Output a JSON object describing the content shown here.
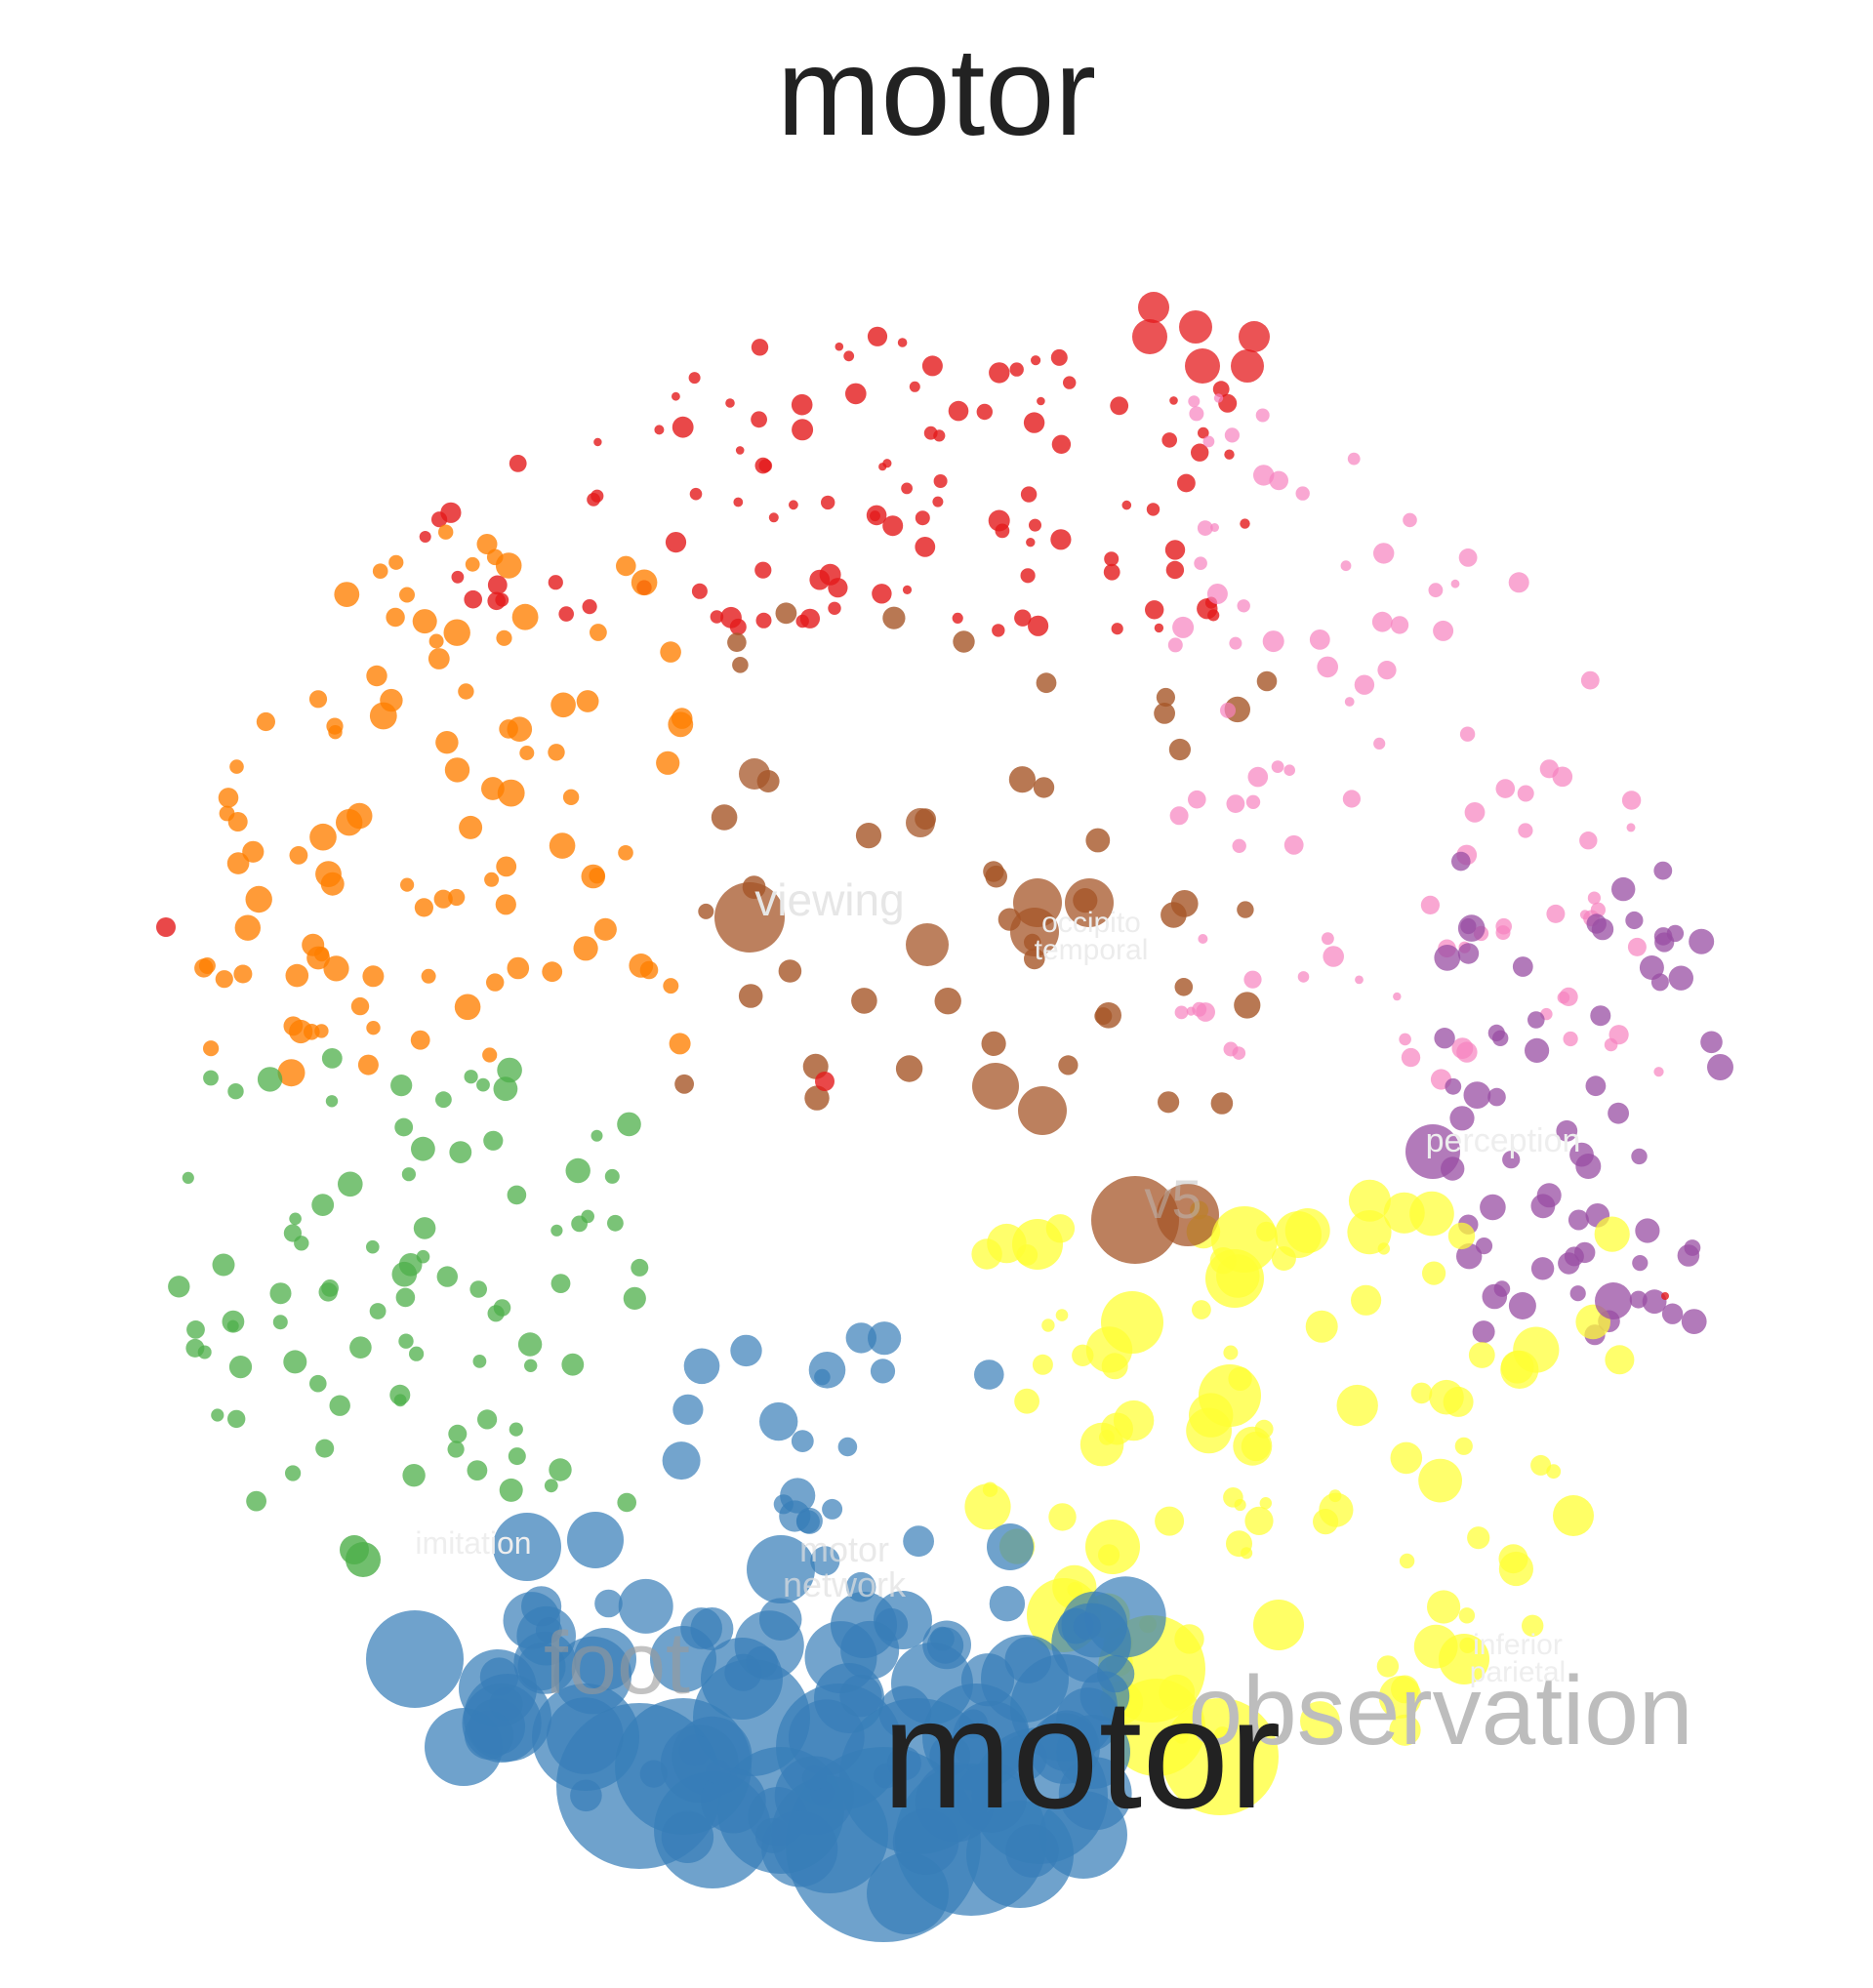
{
  "title": "motor",
  "colors": {
    "background": "#ffffff",
    "title": "#222222",
    "clusters": {
      "red": "#e41a1c",
      "orange": "#ff7f00",
      "green": "#4daf4a",
      "blue": "#377eb8",
      "yellow": "#ffff33",
      "brown": "#a65628",
      "pink": "#f781bf",
      "purple": "#984ea3"
    }
  },
  "terms": [
    {
      "text": "motor",
      "emphasis": "primary"
    },
    {
      "text": "observation",
      "emphasis": "secondary"
    },
    {
      "text": "foot",
      "emphasis": "secondary"
    },
    {
      "text": "v5",
      "emphasis": "faint"
    },
    {
      "text": "viewing",
      "emphasis": "faint"
    },
    {
      "text": "motor network",
      "emphasis": "faint"
    },
    {
      "text": "occipito temporal",
      "emphasis": "faint"
    },
    {
      "text": "inferior parietal",
      "emphasis": "faint"
    },
    {
      "text": "perception",
      "emphasis": "faint"
    },
    {
      "text": "imitation",
      "emphasis": "faint"
    }
  ]
}
